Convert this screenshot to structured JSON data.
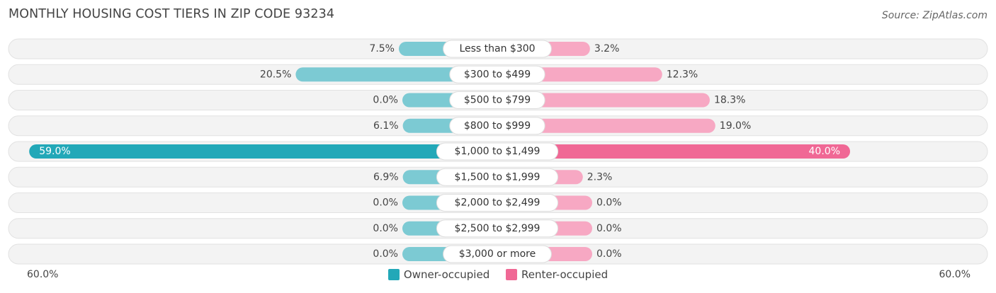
{
  "title": "MONTHLY HOUSING COST TIERS IN ZIP CODE 93234",
  "source": "Source: ZipAtlas.com",
  "axis": {
    "left_label": "60.0%",
    "right_label": "60.0%"
  },
  "legend": {
    "owner_label": "Owner-occupied",
    "renter_label": "Renter-occupied"
  },
  "colors": {
    "owner": "#7ccad3",
    "owner_strong": "#22a8b8",
    "renter": "#f7a8c3",
    "renter_strong": "#f06895",
    "track": "#efefef"
  },
  "chart_data": {
    "type": "bar",
    "orientation": "horizontal-diverging",
    "title": "MONTHLY HOUSING COST TIERS IN ZIP CODE 93234",
    "xlim": [
      -60,
      60
    ],
    "categories": [
      "Less than $300",
      "$300 to $499",
      "$500 to $799",
      "$800 to $999",
      "$1,000 to $1,499",
      "$1,500 to $1,999",
      "$2,000 to $2,499",
      "$2,500 to $2,999",
      "$3,000 or more"
    ],
    "series": [
      {
        "name": "Owner-occupied",
        "values": [
          7.5,
          20.5,
          0.0,
          6.1,
          59.0,
          6.9,
          0.0,
          0.0,
          0.0
        ]
      },
      {
        "name": "Renter-occupied",
        "values": [
          3.2,
          12.3,
          18.3,
          19.0,
          40.0,
          2.3,
          0.0,
          0.0,
          0.0
        ]
      }
    ],
    "value_labels": {
      "owner": [
        "7.5%",
        "20.5%",
        "0.0%",
        "6.1%",
        "59.0%",
        "6.9%",
        "0.0%",
        "0.0%",
        "0.0%"
      ],
      "renter": [
        "3.2%",
        "12.3%",
        "18.3%",
        "19.0%",
        "40.0%",
        "2.3%",
        "0.0%",
        "0.0%",
        "0.0%"
      ]
    },
    "legend_position": "bottom-center",
    "grid": false
  }
}
